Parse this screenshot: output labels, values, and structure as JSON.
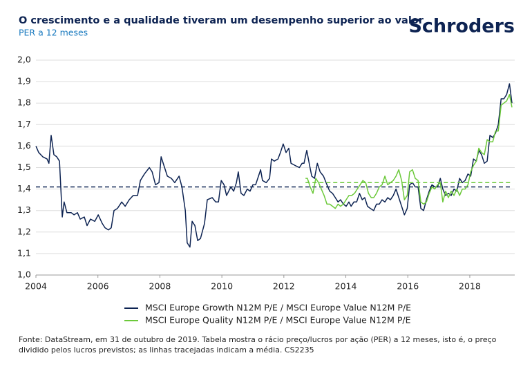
{
  "chart_data": {
    "type": "line",
    "title": "O crescimento e a qualidade tiveram um desempenho superior ao valor",
    "subtitle": "PER a 12 meses",
    "logo": "Schroders",
    "source": "Fonte: DataStream, em 31 de outubro de 2019. Tabela mostra o rácio preço/lucros por ação (PER) a 12 meses, isto é, o preço dividido pelos lucros previstos; as linhas tracejadas indicam a média. CS2235",
    "xlim": [
      2004,
      2019.45
    ],
    "xticks": [
      2004,
      2006,
      2008,
      2010,
      2012,
      2014,
      2016,
      2018
    ],
    "ylim": [
      1.0,
      2.0
    ],
    "yticks": [
      {
        "value": 1.0,
        "label": "1,0"
      },
      {
        "value": 1.1,
        "label": "1,1"
      },
      {
        "value": 1.2,
        "label": "1,2"
      },
      {
        "value": 1.3,
        "label": "1,3"
      },
      {
        "value": 1.4,
        "label": "1,4"
      },
      {
        "value": 1.5,
        "label": "1,5"
      },
      {
        "value": 1.6,
        "label": "1,6"
      },
      {
        "value": 1.7,
        "label": "1,7"
      },
      {
        "value": 1.8,
        "label": "1,8"
      },
      {
        "value": 1.9,
        "label": "1,9"
      },
      {
        "value": 2.0,
        "label": "2,0"
      }
    ],
    "grid": true,
    "series": [
      {
        "name": "MSCI Europe Growth N12M P/E / MSCI Europe Value N12M P/E",
        "color": "#0d2352",
        "mean": 1.41,
        "x": [
          2004.0,
          2004.09,
          2004.22,
          2004.36,
          2004.42,
          2004.49,
          2004.58,
          2004.67,
          2004.76,
          2004.85,
          2004.91,
          2005.0,
          2005.14,
          2005.23,
          2005.34,
          2005.43,
          2005.56,
          2005.65,
          2005.76,
          2005.9,
          2006.01,
          2006.14,
          2006.23,
          2006.34,
          2006.43,
          2006.52,
          2006.63,
          2006.77,
          2006.88,
          2007.01,
          2007.14,
          2007.28,
          2007.37,
          2007.5,
          2007.66,
          2007.75,
          2007.86,
          2007.97,
          2008.04,
          2008.13,
          2008.24,
          2008.37,
          2008.48,
          2008.62,
          2008.71,
          2008.82,
          2008.88,
          2008.97,
          2009.04,
          2009.13,
          2009.22,
          2009.31,
          2009.44,
          2009.53,
          2009.69,
          2009.8,
          2009.89,
          2009.98,
          2010.07,
          2010.15,
          2010.29,
          2010.38,
          2010.47,
          2010.53,
          2010.62,
          2010.71,
          2010.82,
          2010.91,
          2011.0,
          2011.09,
          2011.25,
          2011.31,
          2011.43,
          2011.54,
          2011.6,
          2011.69,
          2011.81,
          2011.89,
          2011.98,
          2012.07,
          2012.16,
          2012.23,
          2012.36,
          2012.5,
          2012.59,
          2012.65,
          2012.74,
          2012.83,
          2012.9,
          2012.99,
          2013.08,
          2013.17,
          2013.28,
          2013.39,
          2013.48,
          2013.57,
          2013.66,
          2013.75,
          2013.83,
          2013.92,
          2014.01,
          2014.1,
          2014.17,
          2014.26,
          2014.35,
          2014.44,
          2014.53,
          2014.61,
          2014.7,
          2014.79,
          2014.9,
          2014.99,
          2015.08,
          2015.17,
          2015.26,
          2015.35,
          2015.44,
          2015.53,
          2015.62,
          2015.71,
          2015.8,
          2015.89,
          2015.98,
          2016.06,
          2016.15,
          2016.24,
          2016.33,
          2016.42,
          2016.51,
          2016.6,
          2016.69,
          2016.78,
          2016.87,
          2016.96,
          2017.05,
          2017.13,
          2017.22,
          2017.31,
          2017.4,
          2017.49,
          2017.58,
          2017.67,
          2017.76,
          2017.85,
          2017.94,
          2018.03,
          2018.12,
          2018.21,
          2018.29,
          2018.38,
          2018.47,
          2018.56,
          2018.65,
          2018.74,
          2018.83,
          2018.92,
          2019.01,
          2019.1,
          2019.19,
          2019.28,
          2019.36
        ],
        "values": [
          1.6,
          1.57,
          1.55,
          1.54,
          1.52,
          1.65,
          1.56,
          1.55,
          1.53,
          1.27,
          1.34,
          1.29,
          1.29,
          1.28,
          1.29,
          1.26,
          1.27,
          1.23,
          1.26,
          1.25,
          1.28,
          1.24,
          1.22,
          1.21,
          1.22,
          1.3,
          1.31,
          1.34,
          1.32,
          1.35,
          1.37,
          1.37,
          1.44,
          1.47,
          1.5,
          1.48,
          1.42,
          1.43,
          1.55,
          1.51,
          1.46,
          1.45,
          1.43,
          1.46,
          1.41,
          1.3,
          1.15,
          1.13,
          1.25,
          1.23,
          1.16,
          1.17,
          1.24,
          1.35,
          1.36,
          1.34,
          1.34,
          1.44,
          1.42,
          1.37,
          1.41,
          1.39,
          1.43,
          1.48,
          1.38,
          1.37,
          1.4,
          1.39,
          1.42,
          1.42,
          1.49,
          1.44,
          1.43,
          1.45,
          1.54,
          1.53,
          1.54,
          1.57,
          1.61,
          1.57,
          1.59,
          1.52,
          1.51,
          1.5,
          1.52,
          1.52,
          1.58,
          1.51,
          1.46,
          1.45,
          1.52,
          1.48,
          1.46,
          1.42,
          1.39,
          1.38,
          1.36,
          1.34,
          1.35,
          1.33,
          1.32,
          1.34,
          1.32,
          1.34,
          1.34,
          1.38,
          1.35,
          1.36,
          1.32,
          1.31,
          1.3,
          1.33,
          1.33,
          1.35,
          1.34,
          1.36,
          1.35,
          1.37,
          1.4,
          1.36,
          1.32,
          1.28,
          1.31,
          1.42,
          1.43,
          1.41,
          1.41,
          1.31,
          1.3,
          1.35,
          1.39,
          1.42,
          1.41,
          1.41,
          1.45,
          1.4,
          1.37,
          1.38,
          1.37,
          1.4,
          1.39,
          1.45,
          1.43,
          1.44,
          1.47,
          1.46,
          1.54,
          1.53,
          1.58,
          1.56,
          1.52,
          1.53,
          1.65,
          1.64,
          1.66,
          1.7,
          1.82,
          1.82,
          1.84,
          1.89,
          1.8
        ]
      },
      {
        "name": "MSCI Europe Quality N12M P/E / MSCI Europe Value N12M P/E",
        "color": "#6cc93a",
        "mean": 1.43,
        "x": [
          2012.7,
          2012.76,
          2012.85,
          2012.94,
          2013.03,
          2013.12,
          2013.21,
          2013.3,
          2013.39,
          2013.48,
          2013.57,
          2013.66,
          2013.75,
          2013.83,
          2013.92,
          2014.01,
          2014.1,
          2014.19,
          2014.28,
          2014.37,
          2014.46,
          2014.55,
          2014.64,
          2014.73,
          2014.82,
          2014.9,
          2014.99,
          2015.08,
          2015.17,
          2015.26,
          2015.35,
          2015.44,
          2015.53,
          2015.62,
          2015.71,
          2015.8,
          2015.89,
          2015.98,
          2016.06,
          2016.15,
          2016.24,
          2016.33,
          2016.42,
          2016.51,
          2016.6,
          2016.69,
          2016.78,
          2016.87,
          2016.96,
          2017.05,
          2017.13,
          2017.22,
          2017.31,
          2017.4,
          2017.49,
          2017.58,
          2017.67,
          2017.76,
          2017.85,
          2017.94,
          2018.03,
          2018.12,
          2018.21,
          2018.29,
          2018.38,
          2018.47,
          2018.56,
          2018.65,
          2018.74,
          2018.83,
          2018.92,
          2019.01,
          2019.1,
          2019.19,
          2019.28,
          2019.36
        ],
        "values": [
          1.45,
          1.45,
          1.41,
          1.38,
          1.45,
          1.43,
          1.4,
          1.37,
          1.33,
          1.33,
          1.32,
          1.31,
          1.33,
          1.32,
          1.33,
          1.35,
          1.37,
          1.37,
          1.38,
          1.4,
          1.42,
          1.44,
          1.43,
          1.38,
          1.36,
          1.36,
          1.38,
          1.41,
          1.42,
          1.46,
          1.42,
          1.43,
          1.44,
          1.46,
          1.49,
          1.44,
          1.35,
          1.37,
          1.48,
          1.49,
          1.45,
          1.44,
          1.34,
          1.33,
          1.34,
          1.38,
          1.41,
          1.4,
          1.42,
          1.43,
          1.34,
          1.39,
          1.36,
          1.39,
          1.37,
          1.4,
          1.37,
          1.4,
          1.4,
          1.42,
          1.48,
          1.51,
          1.53,
          1.59,
          1.57,
          1.56,
          1.63,
          1.62,
          1.62,
          1.67,
          1.67,
          1.79,
          1.8,
          1.81,
          1.84,
          1.78
        ]
      }
    ]
  }
}
